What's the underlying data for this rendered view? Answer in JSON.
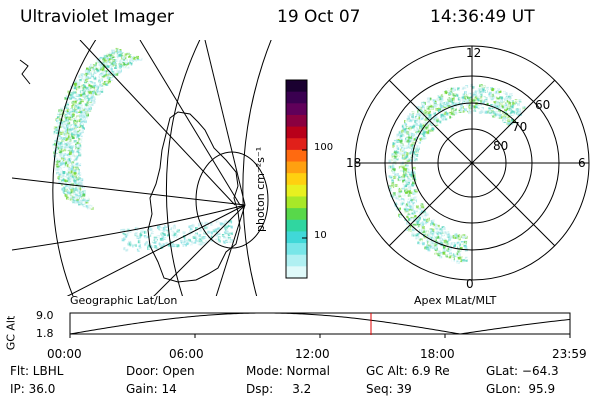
{
  "header": {
    "instrument": "Ultraviolet Imager",
    "date": "19 Oct 07",
    "time": "14:36:49 UT"
  },
  "colorbar": {
    "unit_label": "photon cm⁻²s⁻¹",
    "ticks": [
      "100",
      "10"
    ],
    "colors": [
      "#1a0030",
      "#3a0050",
      "#60005a",
      "#8a0040",
      "#b8001a",
      "#e0201a",
      "#ff6a10",
      "#ffa010",
      "#ffd010",
      "#e8f020",
      "#a8e828",
      "#58d84a",
      "#30d6a0",
      "#40d8d8",
      "#78e6e8",
      "#b0f0f2",
      "#e0fafa"
    ]
  },
  "left_map": {
    "label": "Geographic Lat/Lon",
    "palette": [
      "#c2ecee",
      "#90e2e4",
      "#5cd6c0",
      "#5ad05a",
      "#78d83e"
    ]
  },
  "right_map": {
    "label": "Apex MLat/MLT",
    "mlt_labels": {
      "top": "12",
      "bottom": "0",
      "left": "18",
      "right": "6"
    },
    "lat_labels": [
      "80",
      "70",
      "60"
    ]
  },
  "altitude_plot": {
    "ylabel": "GC Alt",
    "ytick_top": "9.0",
    "ytick_bottom": "1.8",
    "xticks": [
      "00:00",
      "06:00",
      "12:00",
      "18:00",
      "23:59"
    ],
    "marker_color": "#e00000"
  },
  "footer": {
    "flt": "Flt: LBHL",
    "ip": "IP: 36.0",
    "door": "Door: Open",
    "gain": "Gain: 14",
    "mode": "Mode: Normal",
    "dsp": "Dsp:     3.2",
    "gcalt": "GC Alt: 6.9 Re",
    "seq": "Seq: 39",
    "glat": "GLat: −64.3",
    "glon": "GLon:  95.9"
  }
}
